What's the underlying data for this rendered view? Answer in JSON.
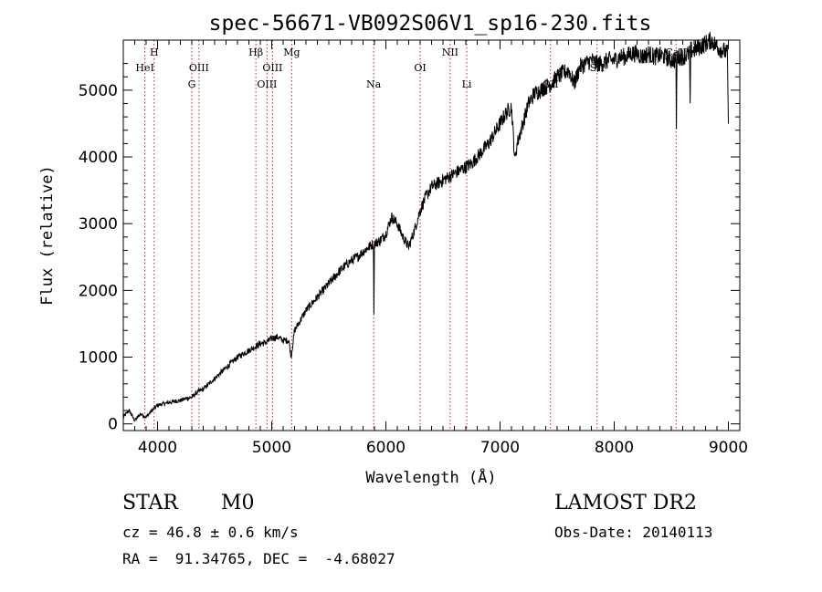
{
  "chart_data": {
    "type": "line",
    "title": "spec-56671-VB092S06V1_sp16-230.fits",
    "xlabel": "Wavelength (Å)",
    "ylabel": "Flux (relative)",
    "xlim": [
      3700,
      9100
    ],
    "ylim": [
      -100,
      5750
    ],
    "xticks": [
      4000,
      5000,
      6000,
      7000,
      8000,
      9000
    ],
    "yticks": [
      0,
      1000,
      2000,
      3000,
      4000,
      5000
    ],
    "grid": false,
    "series": [
      {
        "line_color": "#000000",
        "x": [
          3700,
          3750,
          3800,
          3850,
          3900,
          3950,
          4000,
          4050,
          4100,
          4150,
          4200,
          4250,
          4300,
          4350,
          4400,
          4450,
          4500,
          4550,
          4600,
          4650,
          4700,
          4750,
          4800,
          4850,
          4900,
          4950,
          5000,
          5050,
          5100,
          5150,
          5170,
          5200,
          5250,
          5300,
          5350,
          5400,
          5450,
          5500,
          5550,
          5600,
          5650,
          5700,
          5750,
          5800,
          5850,
          5890,
          5895,
          5900,
          5950,
          6000,
          6050,
          6100,
          6150,
          6200,
          6250,
          6300,
          6350,
          6400,
          6450,
          6500,
          6550,
          6600,
          6650,
          6700,
          6750,
          6800,
          6850,
          6900,
          6950,
          7000,
          7050,
          7100,
          7130,
          7150,
          7200,
          7250,
          7300,
          7350,
          7400,
          7450,
          7500,
          7550,
          7600,
          7650,
          7700,
          7750,
          7800,
          7850,
          7900,
          7950,
          8000,
          8050,
          8100,
          8150,
          8200,
          8250,
          8300,
          8350,
          8400,
          8450,
          8500,
          8540,
          8545,
          8550,
          8600,
          8660,
          8665,
          8670,
          8700,
          8750,
          8800,
          8850,
          8900,
          8950,
          8990,
          9000
        ],
        "y": [
          100,
          200,
          50,
          150,
          100,
          200,
          280,
          300,
          320,
          340,
          350,
          380,
          400,
          480,
          520,
          600,
          680,
          760,
          840,
          920,
          1000,
          1050,
          1100,
          1150,
          1200,
          1220,
          1280,
          1300,
          1250,
          1250,
          1000,
          1400,
          1550,
          1700,
          1800,
          1900,
          2000,
          2100,
          2200,
          2300,
          2380,
          2450,
          2500,
          2580,
          2650,
          2700,
          1700,
          2700,
          2750,
          2850,
          3100,
          3000,
          2800,
          2650,
          2900,
          3200,
          3400,
          3550,
          3600,
          3650,
          3700,
          3750,
          3800,
          3850,
          3900,
          4000,
          4100,
          4200,
          4350,
          4500,
          4650,
          4750,
          3950,
          4200,
          4500,
          4800,
          4950,
          5000,
          5050,
          5100,
          5200,
          5250,
          5300,
          5100,
          5350,
          5400,
          5450,
          5400,
          5400,
          5450,
          5450,
          5500,
          5500,
          5550,
          5550,
          5500,
          5550,
          5500,
          5520,
          5500,
          5450,
          5450,
          4500,
          5500,
          5500,
          5550,
          4700,
          5600,
          5600,
          5650,
          5700,
          5750,
          5650,
          5600,
          5550,
          4500
        ]
      }
    ],
    "lines": [
      {
        "x": 3889,
        "label": "HeI",
        "row": 2
      },
      {
        "x": 3970,
        "label": "H",
        "row": 1
      },
      {
        "x": 4300,
        "label": "G",
        "row": 3
      },
      {
        "x": 4363,
        "label": "OIII",
        "row": 2
      },
      {
        "x": 4861,
        "label": "Hβ",
        "row": 1
      },
      {
        "x": 4959,
        "label": "OIII",
        "row": 3
      },
      {
        "x": 5007,
        "label": "OIII",
        "row": 2
      },
      {
        "x": 5175,
        "label": "Mg",
        "row": 1
      },
      {
        "x": 5893,
        "label": "Na",
        "row": 3
      },
      {
        "x": 6300,
        "label": "OI",
        "row": 2
      },
      {
        "x": 6563,
        "label": "NII",
        "row": 1
      },
      {
        "x": 6708,
        "label": "Li",
        "row": 3
      },
      {
        "x": 7442,
        "label": "OII",
        "row": 3
      },
      {
        "x": 7850,
        "label": "SII",
        "row": 2
      },
      {
        "x": 8542,
        "label": "CaII",
        "row": 1
      }
    ]
  },
  "info": {
    "class_label": "STAR",
    "subclass_label": "M0",
    "survey_label": "LAMOST DR2",
    "cz_text": "cz = 46.8 ± 0.6 km/s",
    "obs_date_text": "Obs-Date: 20140113",
    "coord_text": "RA =  91.34765, DEC =  -4.68027"
  }
}
